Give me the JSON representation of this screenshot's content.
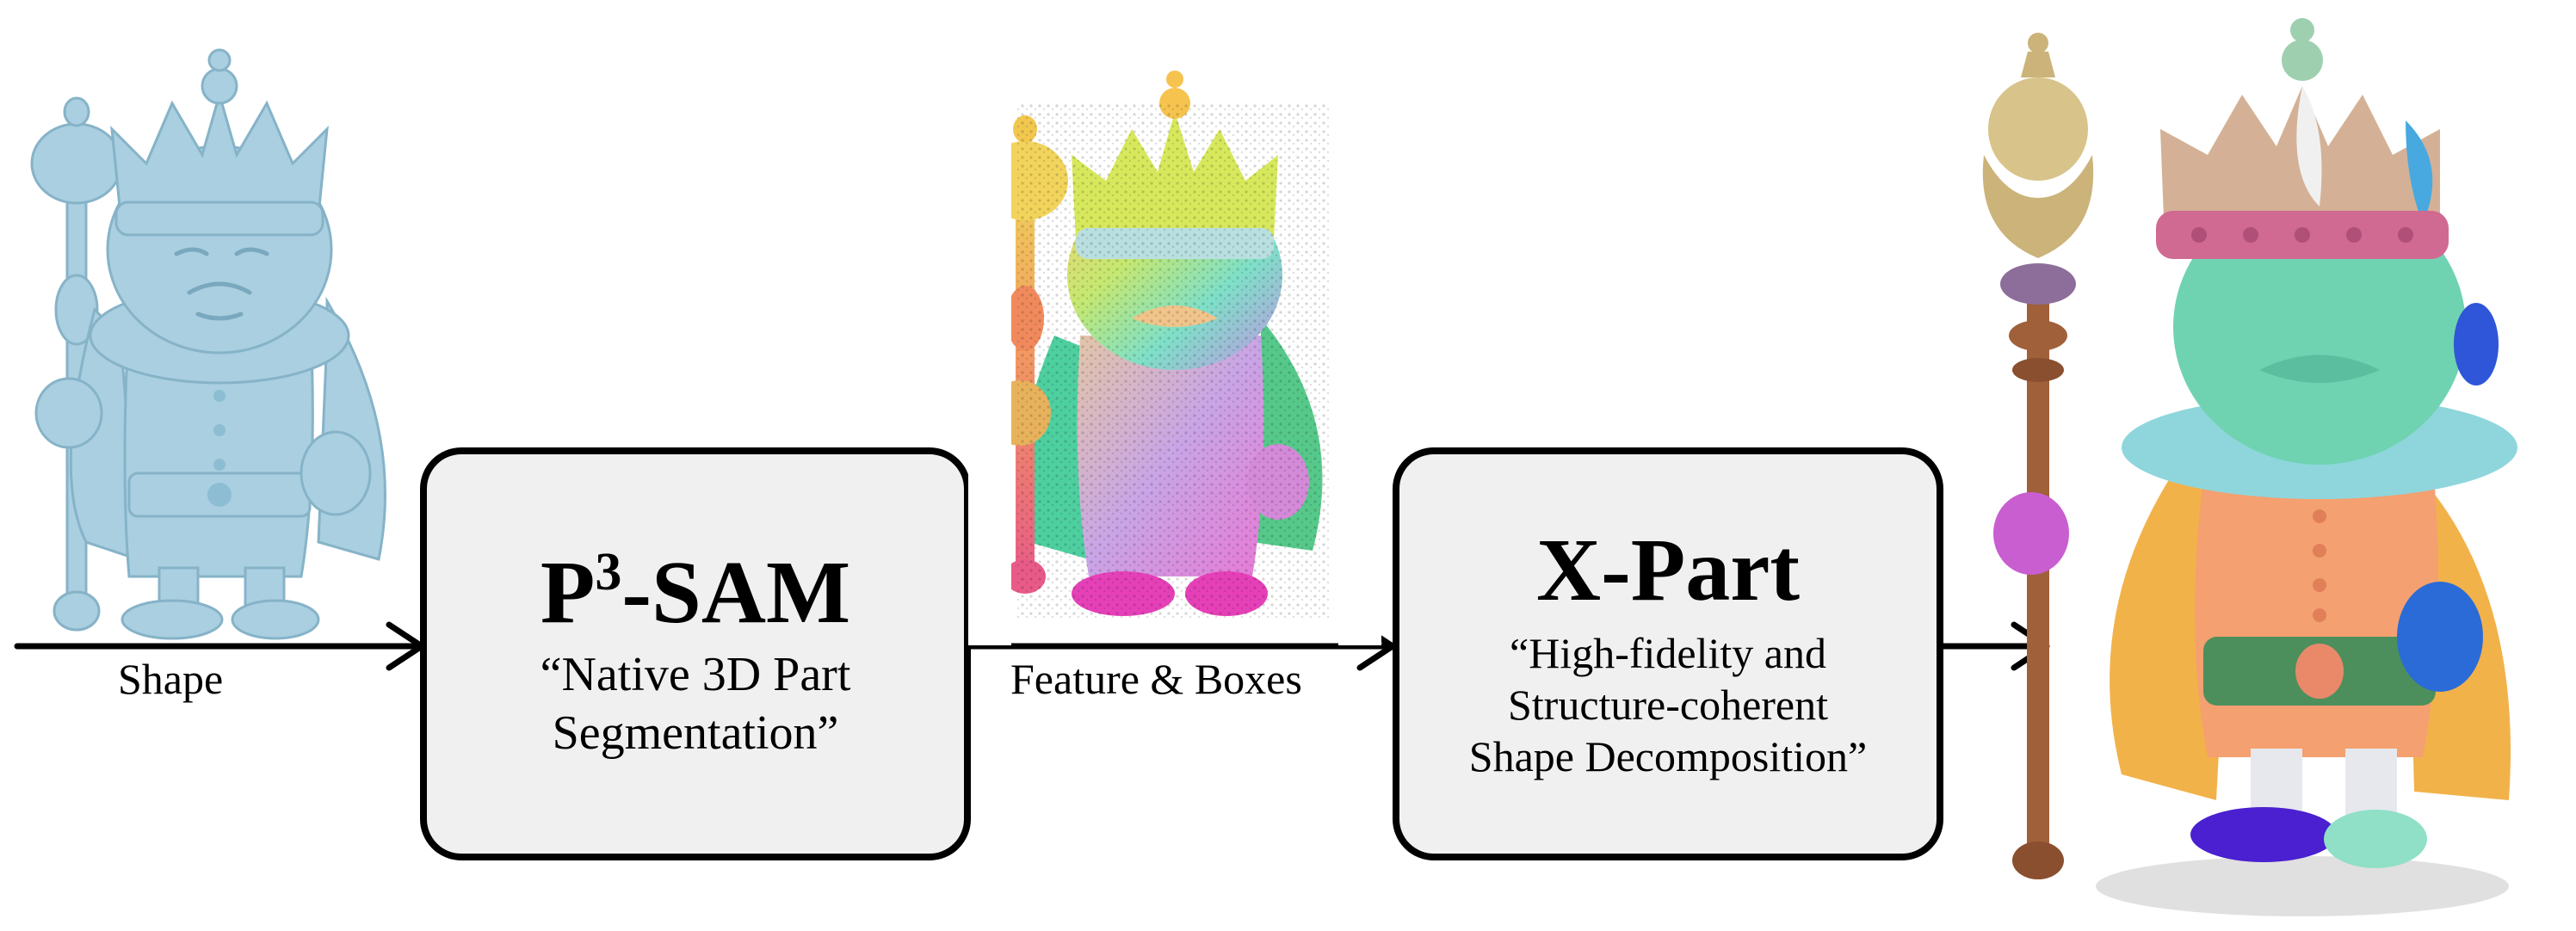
{
  "pipeline": {
    "input_label": "Shape",
    "stage1": {
      "title_main": "P",
      "title_sup": "3",
      "title_rest": "-SAM",
      "subtitle_line1": "“Native 3D Part",
      "subtitle_line2": "Segmentation”"
    },
    "mid_label": "Feature & Boxes",
    "stage2": {
      "title": "X-Part",
      "subtitle_line1": "“High-fidelity and",
      "subtitle_line2": "Structure-coherent",
      "subtitle_line3": "Shape Decomposition”"
    }
  },
  "colors": {
    "input_shape": "#a9cfe0",
    "box_fill": "#f0f0f0",
    "part_body": "#f4a070",
    "part_face": "#6fd3b2",
    "part_crown_band": "#d06a92",
    "part_scepter": "#a0603a",
    "part_cape": "#f2b24a",
    "part_belt": "#4d8f5c",
    "part_glove": "#2a6bd8",
    "part_boots": "#4a20d0",
    "part_sleeve": "#c85ed0"
  }
}
